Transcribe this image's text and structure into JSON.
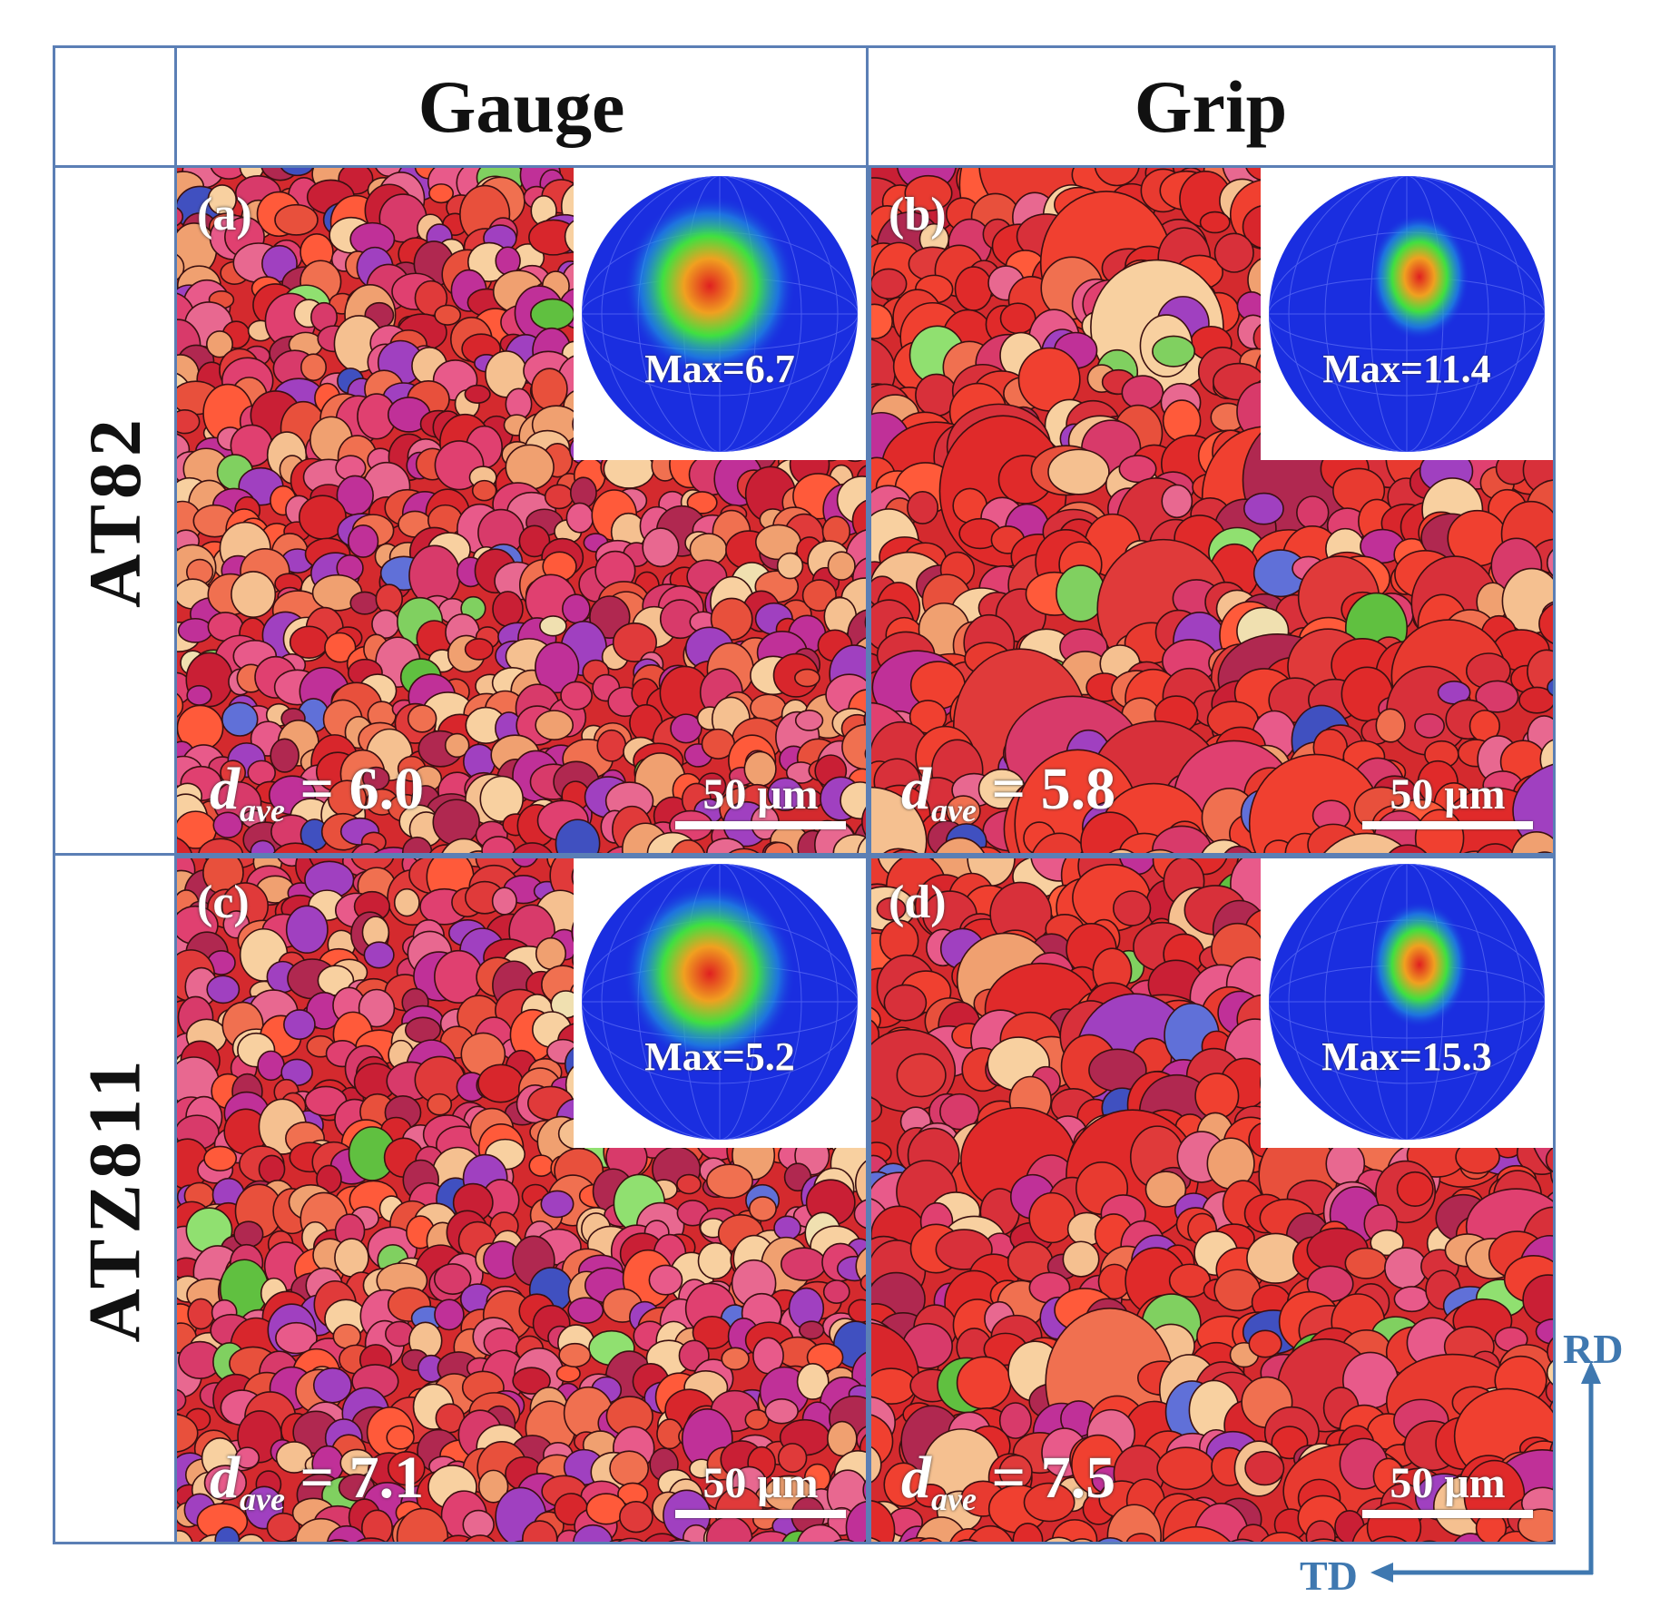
{
  "columns": {
    "gauge": "Gauge",
    "grip": "Grip"
  },
  "rows": {
    "at82": "AT82",
    "atz811": "ATZ811"
  },
  "panels": [
    {
      "label": "(a)",
      "pole_max": "Max=6.7",
      "d_symbol": "d",
      "d_sub": "ave",
      "d_value": "= 6.0",
      "scale": "50 μm"
    },
    {
      "label": "(b)",
      "pole_max": "Max=11.4",
      "d_symbol": "d",
      "d_sub": "ave",
      "d_value": "= 5.8",
      "scale": "50 μm"
    },
    {
      "label": "(c)",
      "pole_max": "Max=5.2",
      "d_symbol": "d",
      "d_sub": "ave",
      "d_value": "= 7.1",
      "scale": "50 μm"
    },
    {
      "label": "(d)",
      "pole_max": "Max=15.3",
      "d_symbol": "d",
      "d_sub": "ave",
      "d_value": "= 7.5",
      "scale": "50 μm"
    }
  ],
  "axes": {
    "vertical": "RD",
    "horizontal": "TD"
  },
  "colors": {
    "frame": "#5b7fb5",
    "axis": "#3f78b0",
    "pole_background": "#1a2ee0"
  }
}
